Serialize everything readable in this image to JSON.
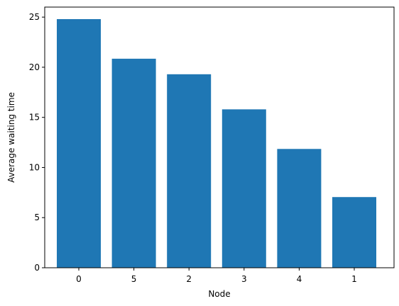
{
  "chart_data": {
    "type": "bar",
    "categories": [
      "0",
      "5",
      "2",
      "3",
      "4",
      "1"
    ],
    "values": [
      24.8,
      20.85,
      19.3,
      15.8,
      11.85,
      7.05
    ],
    "title": "",
    "xlabel": "Node",
    "ylabel": "Average waiting time",
    "ylim": [
      0,
      26
    ],
    "yticks": [
      "0",
      "5",
      "10",
      "15",
      "20",
      "25"
    ],
    "bar_color": "#1f77b4",
    "grid": false
  }
}
